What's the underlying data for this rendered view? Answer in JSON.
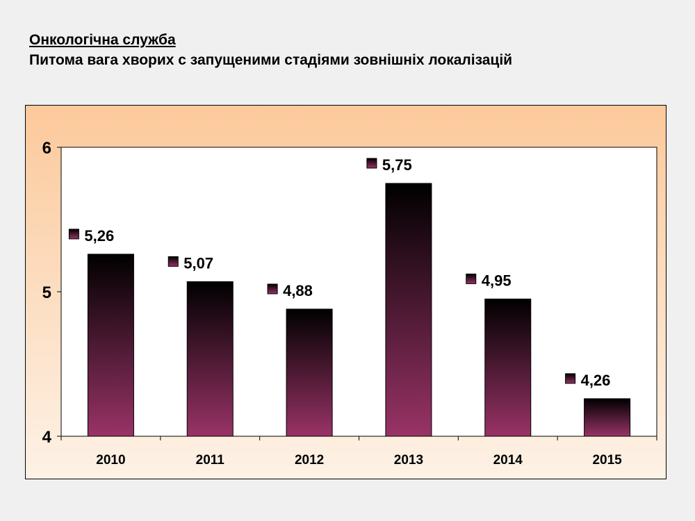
{
  "header": {
    "title": "Онкологічна служба",
    "subtitle": "Питома вага хворих с запущеними стадіями зовнішніх локалізацій"
  },
  "colors": {
    "frame_top": "#fcc99b",
    "frame_bottom": "#fdf2e6",
    "plot_bg": "#ffffff",
    "bar_top": "#000000",
    "bar_bottom": "#993366"
  },
  "chart_data": {
    "type": "bar",
    "categories": [
      "2010",
      "2011",
      "2012",
      "2013",
      "2014",
      "2015"
    ],
    "values": [
      5.26,
      5.07,
      4.88,
      5.75,
      4.95,
      4.26
    ],
    "value_labels": [
      "5,26",
      "5,07",
      "4,88",
      "5,75",
      "4,95",
      "4,26"
    ],
    "ylim": [
      4,
      6
    ],
    "yticks": [
      4,
      5,
      6
    ],
    "ytick_labels": [
      "4",
      "5",
      "6"
    ],
    "grid": false,
    "legend": "none"
  }
}
